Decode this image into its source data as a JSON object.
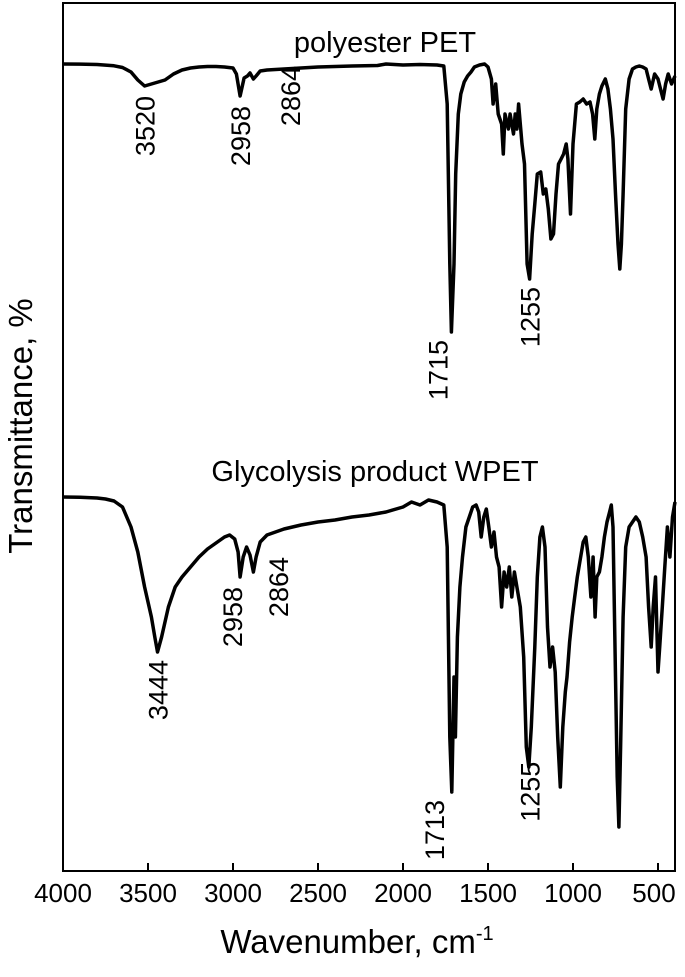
{
  "chart_data": {
    "type": "line",
    "xlabel": "Wavenumber, cm",
    "xlabel_superscript": "-1",
    "ylabel": "Transmittance, %",
    "xlim": [
      4000,
      400
    ],
    "x_reversed": true,
    "y_ticks_shown": false,
    "x_ticks": [
      4000,
      3500,
      3000,
      2500,
      2000,
      1500,
      1000,
      500
    ],
    "x_tick_labels": [
      "4000",
      "3500",
      "3000",
      "2500",
      "2000",
      "1500",
      "1000",
      "500"
    ],
    "line_color": "#000000",
    "series": [
      {
        "name": "polyester PET",
        "points": [
          [
            4000,
            0.0
          ],
          [
            3900,
            0.1
          ],
          [
            3800,
            0.5
          ],
          [
            3700,
            1.8
          ],
          [
            3650,
            3.5
          ],
          [
            3600,
            8
          ],
          [
            3560,
            16
          ],
          [
            3520,
            22
          ],
          [
            3480,
            20
          ],
          [
            3440,
            18
          ],
          [
            3400,
            16
          ],
          [
            3350,
            10
          ],
          [
            3300,
            6
          ],
          [
            3250,
            4
          ],
          [
            3200,
            3
          ],
          [
            3150,
            2.5
          ],
          [
            3100,
            2.5
          ],
          [
            3050,
            3
          ],
          [
            3000,
            4
          ],
          [
            2980,
            10
          ],
          [
            2958,
            32
          ],
          [
            2935,
            14
          ],
          [
            2915,
            12
          ],
          [
            2900,
            9
          ],
          [
            2880,
            15
          ],
          [
            2864,
            12
          ],
          [
            2840,
            7
          ],
          [
            2800,
            6
          ],
          [
            2700,
            5
          ],
          [
            2600,
            4
          ],
          [
            2500,
            3
          ],
          [
            2300,
            2
          ],
          [
            2150,
            1.5
          ],
          [
            2100,
            0
          ],
          [
            2000,
            1
          ],
          [
            1900,
            0.5
          ],
          [
            1800,
            1
          ],
          [
            1760,
            2
          ],
          [
            1740,
            40
          ],
          [
            1725,
            200
          ],
          [
            1715,
            268
          ],
          [
            1700,
            200
          ],
          [
            1690,
            110
          ],
          [
            1675,
            50
          ],
          [
            1660,
            30
          ],
          [
            1640,
            18
          ],
          [
            1620,
            12
          ],
          [
            1600,
            8
          ],
          [
            1580,
            3
          ],
          [
            1550,
            1
          ],
          [
            1520,
            0
          ],
          [
            1500,
            3
          ],
          [
            1480,
            15
          ],
          [
            1470,
            40
          ],
          [
            1455,
            20
          ],
          [
            1440,
            50
          ],
          [
            1420,
            60
          ],
          [
            1410,
            90
          ],
          [
            1400,
            50
          ],
          [
            1380,
            65
          ],
          [
            1370,
            50
          ],
          [
            1350,
            70
          ],
          [
            1340,
            50
          ],
          [
            1330,
            65
          ],
          [
            1320,
            40
          ],
          [
            1300,
            80
          ],
          [
            1285,
            100
          ],
          [
            1270,
            200
          ],
          [
            1255,
            215
          ],
          [
            1240,
            170
          ],
          [
            1225,
            140
          ],
          [
            1210,
            110
          ],
          [
            1190,
            108
          ],
          [
            1175,
            130
          ],
          [
            1160,
            125
          ],
          [
            1145,
            145
          ],
          [
            1130,
            175
          ],
          [
            1115,
            170
          ],
          [
            1100,
            130
          ],
          [
            1085,
            100
          ],
          [
            1070,
            95
          ],
          [
            1055,
            90
          ],
          [
            1040,
            80
          ],
          [
            1030,
            95
          ],
          [
            1015,
            150
          ],
          [
            1000,
            80
          ],
          [
            980,
            40
          ],
          [
            960,
            38
          ],
          [
            940,
            35
          ],
          [
            920,
            40
          ],
          [
            900,
            38
          ],
          [
            885,
            50
          ],
          [
            872,
            75
          ],
          [
            860,
            45
          ],
          [
            845,
            30
          ],
          [
            830,
            22
          ],
          [
            810,
            15
          ],
          [
            795,
            25
          ],
          [
            780,
            45
          ],
          [
            765,
            75
          ],
          [
            750,
            130
          ],
          [
            735,
            180
          ],
          [
            725,
            205
          ],
          [
            715,
            180
          ],
          [
            705,
            130
          ],
          [
            690,
            45
          ],
          [
            670,
            15
          ],
          [
            650,
            5
          ],
          [
            630,
            3
          ],
          [
            610,
            2
          ],
          [
            590,
            3
          ],
          [
            570,
            5
          ],
          [
            555,
            15
          ],
          [
            540,
            25
          ],
          [
            520,
            10
          ],
          [
            500,
            15
          ],
          [
            485,
            25
          ],
          [
            470,
            35
          ],
          [
            455,
            20
          ],
          [
            440,
            10
          ],
          [
            420,
            20
          ],
          [
            400,
            12
          ]
        ]
      },
      {
        "name": "Glycolysis product WPET",
        "points": [
          [
            4000,
            0.0
          ],
          [
            3900,
            0.3
          ],
          [
            3800,
            1
          ],
          [
            3750,
            2
          ],
          [
            3700,
            4
          ],
          [
            3650,
            10
          ],
          [
            3600,
            30
          ],
          [
            3560,
            55
          ],
          [
            3520,
            90
          ],
          [
            3480,
            120
          ],
          [
            3460,
            140
          ],
          [
            3444,
            155
          ],
          [
            3420,
            140
          ],
          [
            3380,
            110
          ],
          [
            3340,
            90
          ],
          [
            3300,
            80
          ],
          [
            3250,
            70
          ],
          [
            3200,
            60
          ],
          [
            3150,
            52
          ],
          [
            3100,
            46
          ],
          [
            3050,
            40
          ],
          [
            3020,
            38
          ],
          [
            2990,
            42
          ],
          [
            2970,
            55
          ],
          [
            2958,
            80
          ],
          [
            2940,
            60
          ],
          [
            2920,
            50
          ],
          [
            2900,
            58
          ],
          [
            2880,
            75
          ],
          [
            2864,
            60
          ],
          [
            2840,
            45
          ],
          [
            2800,
            38
          ],
          [
            2700,
            32
          ],
          [
            2600,
            28
          ],
          [
            2500,
            25
          ],
          [
            2400,
            23
          ],
          [
            2300,
            20
          ],
          [
            2200,
            18
          ],
          [
            2100,
            15
          ],
          [
            2000,
            10
          ],
          [
            1950,
            5
          ],
          [
            1900,
            8
          ],
          [
            1850,
            3
          ],
          [
            1800,
            5
          ],
          [
            1760,
            8
          ],
          [
            1740,
            50
          ],
          [
            1725,
            240
          ],
          [
            1713,
            295
          ],
          [
            1700,
            180
          ],
          [
            1692,
            240
          ],
          [
            1680,
            140
          ],
          [
            1665,
            90
          ],
          [
            1650,
            60
          ],
          [
            1630,
            30
          ],
          [
            1610,
            20
          ],
          [
            1590,
            10
          ],
          [
            1570,
            8
          ],
          [
            1555,
            15
          ],
          [
            1540,
            40
          ],
          [
            1525,
            20
          ],
          [
            1510,
            12
          ],
          [
            1495,
            30
          ],
          [
            1480,
            50
          ],
          [
            1465,
            35
          ],
          [
            1450,
            60
          ],
          [
            1435,
            70
          ],
          [
            1420,
            110
          ],
          [
            1405,
            75
          ],
          [
            1390,
            90
          ],
          [
            1375,
            70
          ],
          [
            1360,
            100
          ],
          [
            1345,
            75
          ],
          [
            1330,
            90
          ],
          [
            1310,
            110
          ],
          [
            1290,
            160
          ],
          [
            1275,
            250
          ],
          [
            1260,
            270
          ],
          [
            1245,
            230
          ],
          [
            1225,
            150
          ],
          [
            1210,
            80
          ],
          [
            1195,
            40
          ],
          [
            1180,
            30
          ],
          [
            1165,
            50
          ],
          [
            1150,
            130
          ],
          [
            1135,
            170
          ],
          [
            1120,
            150
          ],
          [
            1105,
            175
          ],
          [
            1090,
            240
          ],
          [
            1075,
            290
          ],
          [
            1060,
            230
          ],
          [
            1045,
            195
          ],
          [
            1035,
            180
          ],
          [
            1020,
            145
          ],
          [
            1005,
            120
          ],
          [
            990,
            100
          ],
          [
            975,
            80
          ],
          [
            960,
            65
          ],
          [
            940,
            45
          ],
          [
            925,
            40
          ],
          [
            910,
            60
          ],
          [
            895,
            100
          ],
          [
            882,
            60
          ],
          [
            870,
            120
          ],
          [
            860,
            80
          ],
          [
            845,
            75
          ],
          [
            830,
            60
          ],
          [
            815,
            40
          ],
          [
            800,
            25
          ],
          [
            785,
            15
          ],
          [
            775,
            8
          ],
          [
            765,
            30
          ],
          [
            750,
            180
          ],
          [
            740,
            280
          ],
          [
            730,
            330
          ],
          [
            720,
            250
          ],
          [
            705,
            120
          ],
          [
            690,
            50
          ],
          [
            670,
            30
          ],
          [
            650,
            25
          ],
          [
            630,
            20
          ],
          [
            610,
            25
          ],
          [
            590,
            40
          ],
          [
            570,
            60
          ],
          [
            555,
            110
          ],
          [
            540,
            150
          ],
          [
            528,
            110
          ],
          [
            515,
            80
          ],
          [
            500,
            175
          ],
          [
            490,
            150
          ],
          [
            475,
            110
          ],
          [
            460,
            70
          ],
          [
            445,
            30
          ],
          [
            430,
            60
          ],
          [
            415,
            20
          ],
          [
            400,
            5
          ]
        ]
      }
    ],
    "annotations": [
      {
        "series": 0,
        "text": "3520",
        "x": 3520
      },
      {
        "series": 0,
        "text": "2958",
        "x": 2958
      },
      {
        "series": 0,
        "text": "2864",
        "x": 2864
      },
      {
        "series": 0,
        "text": "1715",
        "x": 1715
      },
      {
        "series": 0,
        "text": "1255",
        "x": 1255
      },
      {
        "series": 1,
        "text": "3444",
        "x": 3444
      },
      {
        "series": 1,
        "text": "2958",
        "x": 2958
      },
      {
        "series": 1,
        "text": "2864",
        "x": 2864
      },
      {
        "series": 1,
        "text": "1713",
        "x": 1713
      },
      {
        "series": 1,
        "text": "1255",
        "x": 1255
      }
    ]
  }
}
